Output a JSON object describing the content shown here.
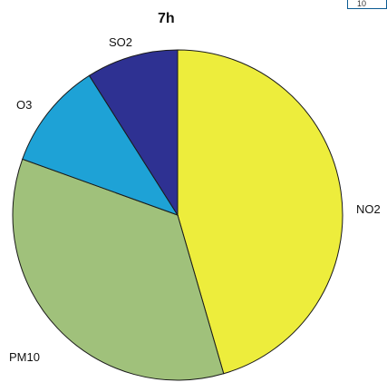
{
  "chart_data": {
    "type": "pie",
    "title": "7h",
    "slices": [
      {
        "label": "NO2",
        "value": 45.5,
        "color": "#eded3c"
      },
      {
        "label": "PM10",
        "value": 35.0,
        "color": "#a0c17b"
      },
      {
        "label": "O3",
        "value": 10.5,
        "color": "#1ea2d6"
      },
      {
        "label": "SO2",
        "value": 9.0,
        "color": "#2e3192"
      }
    ],
    "start_angle_deg": 0,
    "direction": "clockwise"
  },
  "corner_box": {
    "text": "10"
  }
}
